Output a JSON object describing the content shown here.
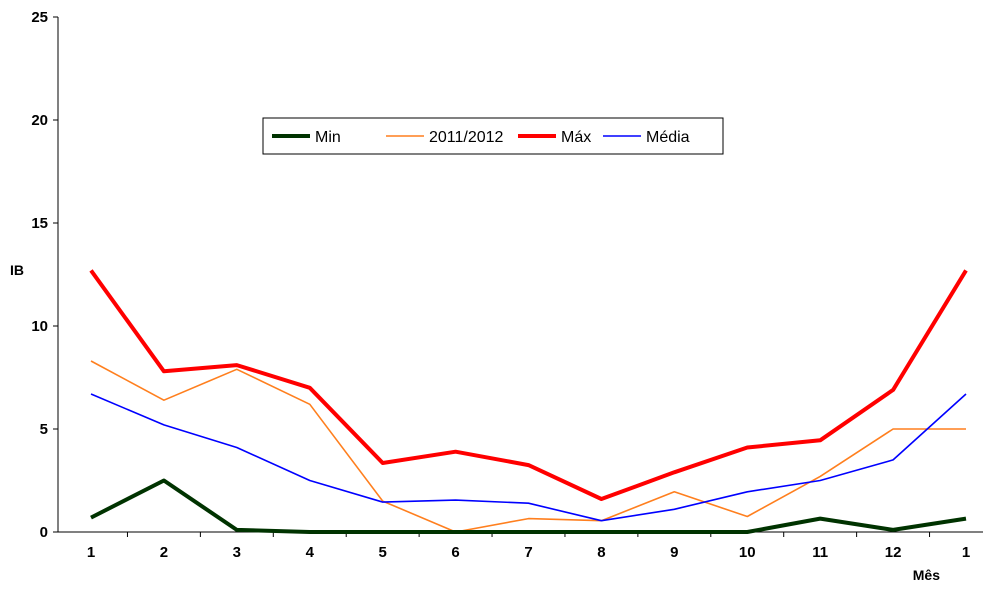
{
  "chart_data": {
    "type": "line",
    "title": "",
    "xlabel": "Mês",
    "ylabel": "IB",
    "categories": [
      "1",
      "2",
      "3",
      "4",
      "5",
      "6",
      "7",
      "8",
      "9",
      "10",
      "11",
      "12",
      "1"
    ],
    "ylim": [
      0,
      25
    ],
    "yticks": [
      0,
      5,
      10,
      15,
      20,
      25
    ],
    "grid": false,
    "legend_position": "top-center",
    "series": [
      {
        "name": "Min",
        "color": "#003300",
        "values": [
          0.7,
          2.5,
          0.1,
          0.0,
          0.0,
          0.0,
          0.0,
          0.0,
          0.0,
          0.0,
          0.65,
          0.1,
          0.65
        ]
      },
      {
        "name": "2011/2012",
        "color": "#ff7f1e",
        "values": [
          8.3,
          6.4,
          7.9,
          6.2,
          1.5,
          0.0,
          0.65,
          0.55,
          1.95,
          0.75,
          2.7,
          5.0,
          5.0
        ]
      },
      {
        "name": "Máx",
        "color": "#ff0000",
        "values": [
          12.7,
          7.8,
          8.1,
          7.0,
          3.35,
          3.9,
          3.25,
          1.6,
          2.9,
          4.1,
          4.45,
          6.9,
          12.7
        ]
      },
      {
        "name": "Média",
        "color": "#0000ff",
        "values": [
          6.7,
          5.2,
          4.1,
          2.5,
          1.45,
          1.55,
          1.4,
          0.55,
          1.1,
          1.95,
          2.5,
          3.5,
          6.7
        ]
      }
    ]
  }
}
